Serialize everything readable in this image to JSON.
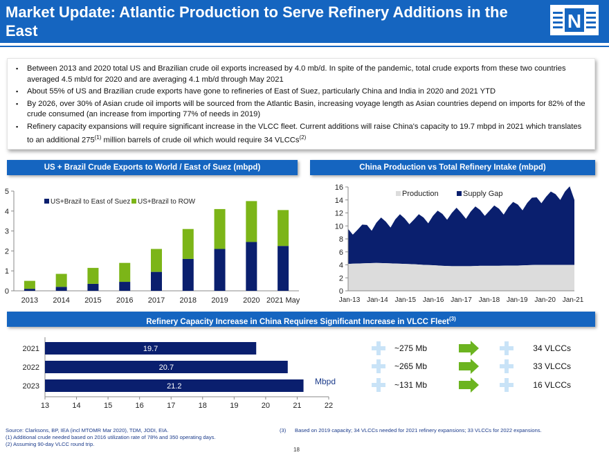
{
  "header": {
    "title": "Market Update: Atlantic Production to Serve Refinery Additions in the East",
    "logo_letter": "N"
  },
  "bullets": [
    {
      "text": "Between 2013 and 2020 total US and Brazilian crude oil exports increased by 4.0 mb/d. In spite of the pandemic, total crude exports from these two countries averaged 4.5 mb/d for 2020 and are averaging 4.1 mb/d through May 2021"
    },
    {
      "text": "About 55% of US and Brazilian crude exports have gone to refineries of East of Suez, particularly China and India in 2020 and 2021 YTD"
    },
    {
      "text": "By 2026, over 30% of Asian crude oil imports will be sourced from the Atlantic Basin, increasing voyage length as Asian countries depend on imports for 82% of the crude consumed (an increase from importing 77% of needs in 2019)"
    },
    {
      "text_a": "Refinery capacity expansions will require significant increase in the VLCC fleet. Current additions will raise China's capacity to 19.7 mbpd in 2021 which translates to an additional 275",
      "sup_a": "(1)",
      "text_b": " million barrels of crude oil which would require 34 VLCCs",
      "sup_b": "(2)"
    }
  ],
  "sections": {
    "exports_title": "US + Brazil Crude Exports to World / East of Suez (mbpd)",
    "china_title": "China Production vs Total Refinery Intake (mbpd)",
    "capacity_title": "Refinery Capacity Increase in China Requires Significant Increase in VLCC Fleet",
    "capacity_title_sup": "(3)"
  },
  "colors": {
    "navy": "#0a1f6e",
    "green": "#7cb518",
    "blue": "#1565c0",
    "grey": "#dcdcdc",
    "arrow": "#6cb420",
    "plus": "#c9e3f7"
  },
  "chart_data": [
    {
      "type": "bar",
      "stacked": true,
      "title": "US + Brazil Crude Exports to World / East of Suez (mbpd)",
      "categories": [
        "2013",
        "2014",
        "2015",
        "2016",
        "2017",
        "2018",
        "2019",
        "2020",
        "2021 May"
      ],
      "series": [
        {
          "name": "US+Brazil to East of Suez",
          "values": [
            0.1,
            0.2,
            0.35,
            0.45,
            0.95,
            1.6,
            2.1,
            2.45,
            2.25
          ]
        },
        {
          "name": "US+Brazil to ROW",
          "values": [
            0.4,
            0.65,
            0.8,
            0.95,
            1.15,
            1.5,
            2.0,
            2.05,
            1.8
          ]
        }
      ],
      "ylim": [
        0,
        5
      ],
      "yticks": [
        "0",
        "1",
        "2",
        "3",
        "4",
        "5"
      ],
      "legend": "top-left"
    },
    {
      "type": "area",
      "stacked": true,
      "title": "China Production vs Total Refinery Intake (mbpd)",
      "x_ticks": [
        "Jan-13",
        "Jan-14",
        "Jan-15",
        "Jan-16",
        "Jan-17",
        "Jan-18",
        "Jan-19",
        "Jan-20",
        "Jan-21"
      ],
      "ylim": [
        0,
        16
      ],
      "yticks": [
        "0",
        "2",
        "4",
        "6",
        "8",
        "10",
        "12",
        "14",
        "16"
      ],
      "series": [
        {
          "name": "Production",
          "values": [
            4.15,
            4.2,
            4.25,
            4.3,
            4.25,
            4.2,
            4.15,
            4.1,
            4.0,
            3.95,
            3.85,
            3.8,
            3.8,
            3.8,
            3.85,
            3.85,
            3.85,
            3.9,
            3.9,
            3.95,
            4.0,
            4.0,
            4.0,
            4.0,
            4.0
          ]
        },
        {
          "name": "Supply Gap",
          "values": [
            5.4,
            5.2,
            5.9,
            6.2,
            6.4,
            6.8,
            7.0,
            6.9,
            7.3,
            7.6,
            8.0,
            8.2,
            8.2,
            8.4,
            8.6,
            8.5,
            8.8,
            9.0,
            9.4,
            9.6,
            10.4,
            10.5,
            10.9,
            11.3,
            10.0
          ]
        }
      ],
      "legend": "top-right"
    },
    {
      "type": "bar",
      "orientation": "horizontal",
      "title": "Refinery Capacity Increase in China Requires Significant Increase in VLCC Fleet",
      "categories": [
        "2021",
        "2022",
        "2023"
      ],
      "values": [
        19.7,
        20.7,
        21.2
      ],
      "value_labels": [
        "19.7",
        "20.7",
        "21.2"
      ],
      "xlim": [
        13,
        22
      ],
      "xticks": [
        "13",
        "14",
        "15",
        "16",
        "17",
        "18",
        "19",
        "20",
        "21",
        "22"
      ],
      "unit_label": "Mbpd"
    }
  ],
  "vlcc_rows": [
    {
      "barrels": "~275 Mb",
      "vlccs": "34 VLCCs"
    },
    {
      "barrels": "~265 Mb",
      "vlccs": "33 VLCCs"
    },
    {
      "barrels": "~131 Mb",
      "vlccs": "16 VLCCs"
    }
  ],
  "footnotes": {
    "source": "Source:  Clarksons, BP, IEA (incl MTOMR Mar 2020), TDM, JODI, EIA.",
    "note1": "(1)    Additional crude needed based on 2016 utilization rate of 78% and 350 operating days.",
    "note2": "(2)    Assuming 90-day VLCC round trip.",
    "note3_marker": "(3)",
    "note3_text": "Based on 2019 capacity; 34 VLCCs needed for 2021 refinery expansions; 33 VLCCs for 2022 expansions."
  },
  "page_number": "18"
}
